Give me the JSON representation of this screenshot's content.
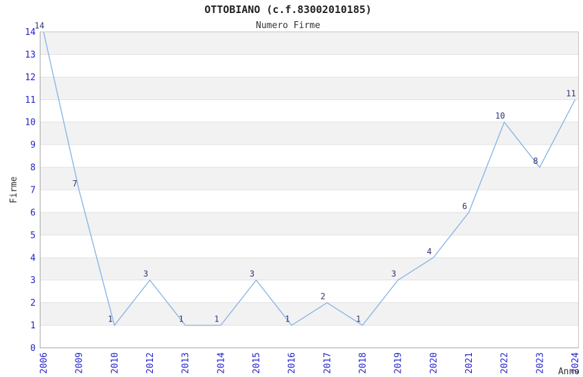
{
  "chart_data": {
    "type": "line",
    "title": "OTTOBIANO (c.f.83002010185)",
    "subtitle": "Numero Firme",
    "xlabel": "Anno",
    "ylabel": "Firme",
    "categories": [
      "2006",
      "2009",
      "2010",
      "2012",
      "2013",
      "2014",
      "2015",
      "2016",
      "2017",
      "2018",
      "2019",
      "2020",
      "2021",
      "2022",
      "2023",
      "2024"
    ],
    "values": [
      14,
      7,
      1,
      3,
      1,
      1,
      3,
      1,
      2,
      1,
      3,
      4,
      6,
      10,
      8,
      11
    ],
    "ylim": [
      0,
      14
    ],
    "ytick_step": 1,
    "grid": true,
    "legend_position": "none",
    "band_pattern": "alternating horizontal bands between odd and even y gridlines",
    "colors": {
      "line": "#8ab5e6",
      "tick_label": "#2323cc",
      "point_label": "#333377",
      "band": "#f2f2f2",
      "gridline": "#e2e2e2",
      "border": "#c6c6c6",
      "axis_line": "#a8a8a8",
      "axis_title": "#333333",
      "title": "#222222",
      "background": "#ffffff"
    }
  }
}
